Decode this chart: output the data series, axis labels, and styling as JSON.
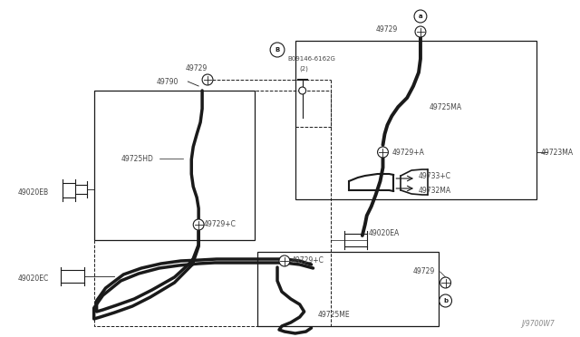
{
  "bg_color": "#ffffff",
  "line_color": "#1a1a1a",
  "label_color": "#444444",
  "fig_width": 6.4,
  "fig_height": 3.72,
  "dpi": 100,
  "watermark": "J/9700W7",
  "xlim": [
    0,
    640
  ],
  "ylim": [
    0,
    372
  ]
}
